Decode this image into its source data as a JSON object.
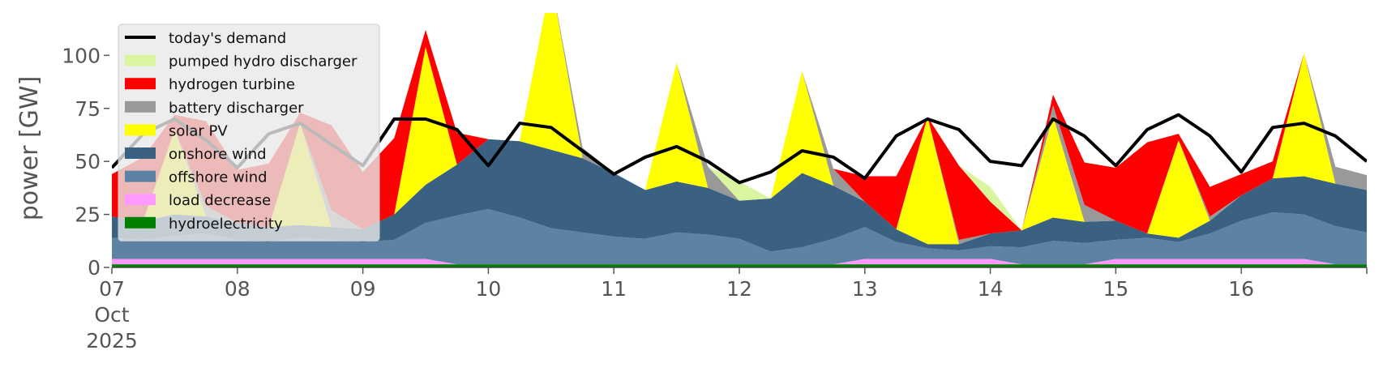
{
  "chart_data": {
    "type": "area",
    "title": "",
    "xlabel": "",
    "ylabel": "power [GW]",
    "ylim": [
      0,
      120
    ],
    "xlim": [
      "2025-10-07 00:00",
      "2025-10-17 00:00"
    ],
    "yticks": [
      0,
      25,
      50,
      75,
      100
    ],
    "x_tick_labels": [
      {
        "x": "2025-10-07",
        "lines": [
          "07",
          "Oct",
          "2025"
        ]
      },
      {
        "x": "2025-10-08",
        "lines": [
          "08"
        ]
      },
      {
        "x": "2025-10-09",
        "lines": [
          "09"
        ]
      },
      {
        "x": "2025-10-10",
        "lines": [
          "10"
        ]
      },
      {
        "x": "2025-10-11",
        "lines": [
          "11"
        ]
      },
      {
        "x": "2025-10-12",
        "lines": [
          "12"
        ]
      },
      {
        "x": "2025-10-13",
        "lines": [
          "13"
        ]
      },
      {
        "x": "2025-10-14",
        "lines": [
          "14"
        ]
      },
      {
        "x": "2025-10-15",
        "lines": [
          "15"
        ]
      },
      {
        "x": "2025-10-16",
        "lines": [
          "16"
        ]
      }
    ],
    "grid": false,
    "legend_position": "top-left",
    "legend": [
      {
        "label": "today's demand",
        "color": "#000000",
        "kind": "line"
      },
      {
        "label": "pumped hydro discharger",
        "color": "#d9f5a0",
        "kind": "patch"
      },
      {
        "label": "hydrogen turbine",
        "color": "#ff0000",
        "kind": "patch"
      },
      {
        "label": "battery discharger",
        "color": "#999999",
        "kind": "patch"
      },
      {
        "label": "solar PV",
        "color": "#ffff00",
        "kind": "patch"
      },
      {
        "label": "onshore wind",
        "color": "#3b6182",
        "kind": "patch"
      },
      {
        "label": "offshore wind",
        "color": "#5d82a3",
        "kind": "patch"
      },
      {
        "label": "load decrease",
        "color": "#ff99ff",
        "kind": "patch"
      },
      {
        "label": "hydroelectricity",
        "color": "#008000",
        "kind": "patch"
      }
    ],
    "x": [
      "2025-10-07 00:00",
      "2025-10-07 06:00",
      "2025-10-07 12:00",
      "2025-10-07 18:00",
      "2025-10-08 00:00",
      "2025-10-08 06:00",
      "2025-10-08 12:00",
      "2025-10-08 18:00",
      "2025-10-09 00:00",
      "2025-10-09 06:00",
      "2025-10-09 12:00",
      "2025-10-09 18:00",
      "2025-10-10 00:00",
      "2025-10-10 06:00",
      "2025-10-10 12:00",
      "2025-10-10 18:00",
      "2025-10-11 00:00",
      "2025-10-11 06:00",
      "2025-10-11 12:00",
      "2025-10-11 18:00",
      "2025-10-12 00:00",
      "2025-10-12 06:00",
      "2025-10-12 12:00",
      "2025-10-12 18:00",
      "2025-10-13 00:00",
      "2025-10-13 06:00",
      "2025-10-13 12:00",
      "2025-10-13 18:00",
      "2025-10-14 00:00",
      "2025-10-14 06:00",
      "2025-10-14 12:00",
      "2025-10-14 18:00",
      "2025-10-15 00:00",
      "2025-10-15 06:00",
      "2025-10-15 12:00",
      "2025-10-15 18:00",
      "2025-10-16 00:00",
      "2025-10-16 06:00",
      "2025-10-16 12:00",
      "2025-10-16 18:00",
      "2025-10-17 00:00"
    ],
    "series": [
      {
        "name": "hydroelectricity",
        "color": "#008000",
        "values": [
          1.5,
          1.5,
          1.5,
          1.5,
          1.5,
          1.5,
          1.5,
          1.5,
          1.5,
          1.5,
          1.5,
          1.5,
          1.5,
          1.5,
          1.5,
          1.5,
          1.5,
          1.5,
          1.5,
          1.5,
          1.5,
          1.5,
          1.5,
          1.5,
          1.5,
          1.5,
          1.5,
          1.5,
          1.5,
          1.5,
          1.5,
          1.5,
          1.5,
          1.5,
          1.5,
          1.5,
          1.5,
          1.5,
          1.5,
          1.5,
          1.5
        ]
      },
      {
        "name": "load decrease",
        "color": "#ff99ff",
        "values": [
          2.5,
          2.5,
          2.5,
          2.5,
          2.5,
          2.5,
          2.5,
          2.5,
          2.5,
          2.5,
          2.5,
          0,
          0,
          0,
          0,
          0,
          0,
          0,
          0,
          0,
          0,
          0,
          0,
          0,
          2.5,
          2.5,
          2.5,
          2.5,
          2.5,
          0,
          0,
          0,
          2.5,
          2.5,
          2.5,
          2.5,
          2.5,
          2.5,
          2.5,
          0,
          0
        ]
      },
      {
        "name": "offshore wind",
        "color": "#5d82a3",
        "values": [
          10,
          9,
          11,
          12,
          9,
          8,
          10,
          9,
          8,
          9,
          17,
          23,
          26,
          22,
          17,
          15,
          13,
          12,
          15,
          14,
          12,
          6,
          8,
          12,
          15,
          8,
          5,
          4,
          6,
          8,
          11,
          10,
          9,
          10,
          8,
          12,
          18,
          22,
          21,
          18,
          15
        ]
      },
      {
        "name": "onshore wind",
        "color": "#3b6182",
        "values": [
          10,
          9,
          10,
          8,
          8,
          7,
          6,
          6,
          6,
          12,
          18,
          24,
          33,
          36,
          37,
          35,
          30,
          23,
          24,
          22,
          18,
          25,
          35,
          25,
          12,
          6,
          2,
          3,
          6,
          8,
          11,
          10,
          9,
          2,
          2,
          6,
          12,
          16,
          18,
          20,
          20
        ]
      },
      {
        "name": "solar PV",
        "color": "#ffff00",
        "values": [
          0,
          0,
          40,
          0,
          0,
          0,
          48,
          0,
          0,
          0,
          65,
          0,
          0,
          0,
          80,
          0,
          0,
          0,
          56,
          0,
          0,
          0,
          48,
          0,
          0,
          0,
          60,
          0,
          0,
          0,
          48,
          0,
          0,
          0,
          46,
          0,
          0,
          0,
          58,
          0,
          0
        ]
      },
      {
        "name": "battery discharger",
        "color": "#999999",
        "values": [
          0,
          0,
          0,
          5,
          0,
          0,
          0,
          8,
          0,
          0,
          0,
          0,
          0,
          0,
          0,
          5,
          0,
          0,
          0,
          10,
          0,
          0,
          0,
          8,
          0,
          0,
          0,
          2,
          0,
          0,
          5,
          8,
          0,
          0,
          0,
          2,
          0,
          0,
          0,
          8,
          7
        ]
      },
      {
        "name": "hydrogen turbine",
        "color": "#ff0000",
        "values": [
          20,
          30,
          7,
          40,
          25,
          30,
          5,
          40,
          27,
          36,
          8,
          15,
          0,
          0,
          0,
          0,
          0,
          0,
          0,
          0,
          0,
          0,
          0,
          0,
          12,
          25,
          0,
          35,
          15,
          0,
          5,
          20,
          25,
          43,
          3,
          14,
          10,
          8,
          0,
          0,
          0
        ]
      },
      {
        "name": "pumped hydro discharger",
        "color": "#d9f5a0",
        "values": [
          0,
          0,
          0,
          0,
          0,
          0,
          0,
          0,
          0,
          0,
          0,
          0,
          0,
          0,
          0,
          0,
          0,
          0,
          0,
          0,
          9,
          0,
          0,
          0,
          0,
          0,
          0,
          0,
          7,
          0,
          0,
          0,
          0,
          0,
          0,
          0,
          0,
          0,
          0,
          0,
          0
        ]
      }
    ],
    "demand": {
      "name": "today's demand",
      "color": "#000000",
      "values": [
        47,
        63,
        70,
        60,
        47,
        63,
        68,
        58,
        48,
        70,
        70,
        65,
        48,
        68,
        66,
        55,
        44,
        52,
        57,
        50,
        40,
        45,
        55,
        52,
        42,
        62,
        70,
        65,
        50,
        48,
        70,
        62,
        48,
        65,
        72,
        62,
        45,
        66,
        68,
        62,
        50
      ]
    }
  }
}
